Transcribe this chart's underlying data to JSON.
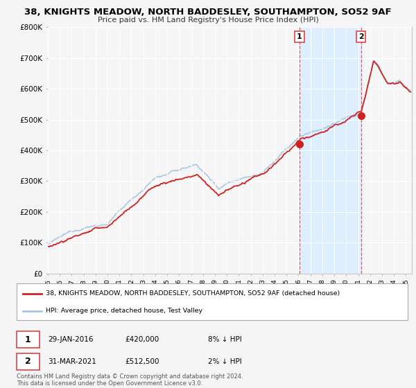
{
  "title_line1": "38, KNIGHTS MEADOW, NORTH BADDESLEY, SOUTHAMPTON, SO52 9AF",
  "title_line2": "Price paid vs. HM Land Registry's House Price Index (HPI)",
  "ylim": [
    0,
    800000
  ],
  "yticks": [
    0,
    100000,
    200000,
    300000,
    400000,
    500000,
    600000,
    700000,
    800000
  ],
  "ytick_labels": [
    "£0",
    "£100K",
    "£200K",
    "£300K",
    "£400K",
    "£500K",
    "£600K",
    "£700K",
    "£800K"
  ],
  "hpi_color": "#aac4e0",
  "price_color": "#cc2222",
  "vline_color": "#dd4444",
  "shade_color": "#ddeeff",
  "sale1_x": 2016.08,
  "sale1_price": 420000,
  "sale1_hpi": 456000,
  "sale2_x": 2021.25,
  "sale2_price": 512500,
  "sale2_hpi": 523000,
  "sale1_date": "29-JAN-2016",
  "sale1_pct": "8% ↓ HPI",
  "sale2_date": "31-MAR-2021",
  "sale2_pct": "2% ↓ HPI",
  "legend_line1": "38, KNIGHTS MEADOW, NORTH BADDESLEY, SOUTHAMPTON, SO52 9AF (detached house)",
  "legend_line2": "HPI: Average price, detached house, Test Valley",
  "footer": "Contains HM Land Registry data © Crown copyright and database right 2024.\nThis data is licensed under the Open Government Licence v3.0.",
  "bg_color": "#f5f5f5",
  "plot_bg": "#f5f5f5"
}
